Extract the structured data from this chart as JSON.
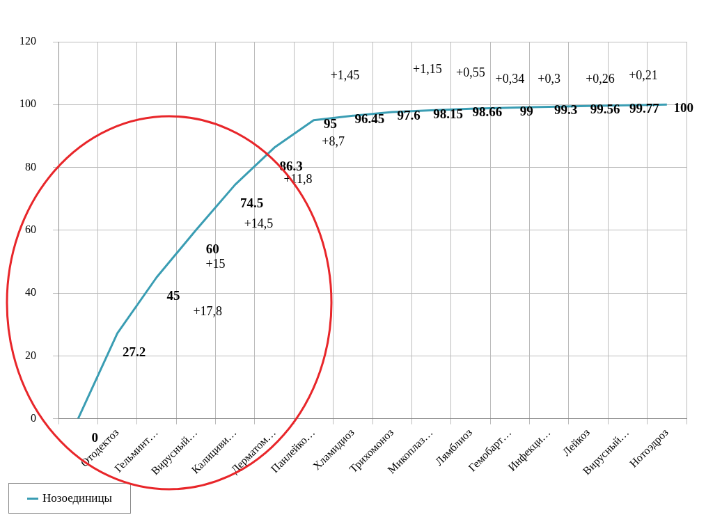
{
  "chart_data": {
    "type": "line",
    "categories": [
      null,
      "Отодектоз",
      "Гельминт…",
      "Вирусный…",
      "Калициви…",
      "Дерматом…",
      "Панлейко…",
      "Хламидиоз",
      "Трихомоноз",
      "Микоплаз…",
      "Лямблиоз",
      "Гемобарт…",
      "Инфекци…",
      "Лейкоз",
      "Вирусный…",
      "Нотоэдроз"
    ],
    "series": [
      {
        "name": "Нозоединицы",
        "color": "#3a9db3",
        "values": [
          0,
          27.2,
          45,
          60,
          74.5,
          86.3,
          95,
          96.45,
          97.6,
          98.15,
          98.66,
          99,
          99.3,
          99.56,
          99.77,
          100
        ]
      }
    ],
    "ylim": [
      0,
      120
    ],
    "yticks": [
      0,
      20,
      40,
      60,
      80,
      100,
      120
    ],
    "grid": true,
    "legend": "bottom left",
    "marker": "none",
    "data_labels": true,
    "annotations": [
      "+17,8",
      "+15",
      "+14,5",
      "+11,8",
      "+8,7",
      "+1,45",
      "+1,15",
      "+0,55",
      "+0,34",
      "+0,3",
      "+0,26",
      "+0,21"
    ]
  }
}
